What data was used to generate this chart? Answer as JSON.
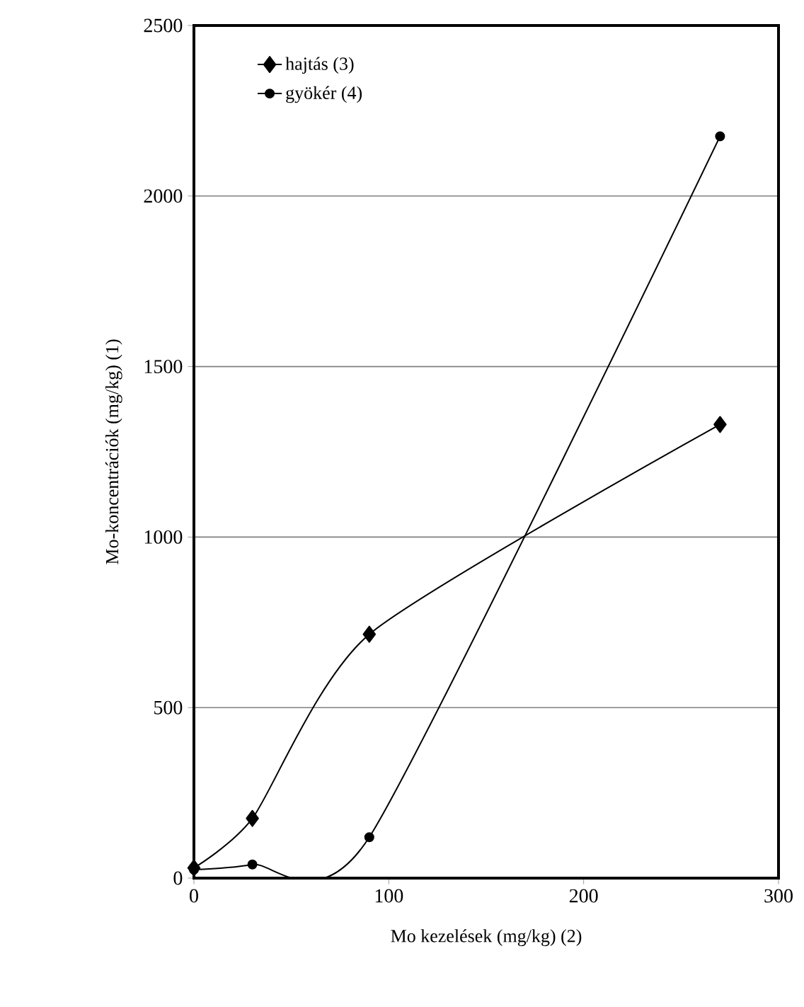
{
  "chart_data": {
    "type": "line",
    "xlabel": "Mo kezelések (mg/kg) (2)",
    "ylabel": "Mo-koncentrációk (mg/kg) (1)",
    "x": [
      0,
      30,
      90,
      270
    ],
    "series": [
      {
        "name": "hajtás (3)",
        "color": "#000000",
        "marker": "diamond",
        "values": [
          30,
          175,
          715,
          1330
        ]
      },
      {
        "name": "gyökér (4)",
        "color": "#000000",
        "marker": "circle",
        "values": [
          25,
          40,
          120,
          2175
        ]
      }
    ],
    "xlim": [
      0,
      300
    ],
    "xticks": [
      0,
      100,
      200,
      300
    ],
    "ylim": [
      0,
      2500
    ],
    "yticks": [
      0,
      500,
      1000,
      1500,
      2000,
      2500
    ],
    "grid": "y",
    "legend": "top left",
    "line_style": "solid"
  }
}
